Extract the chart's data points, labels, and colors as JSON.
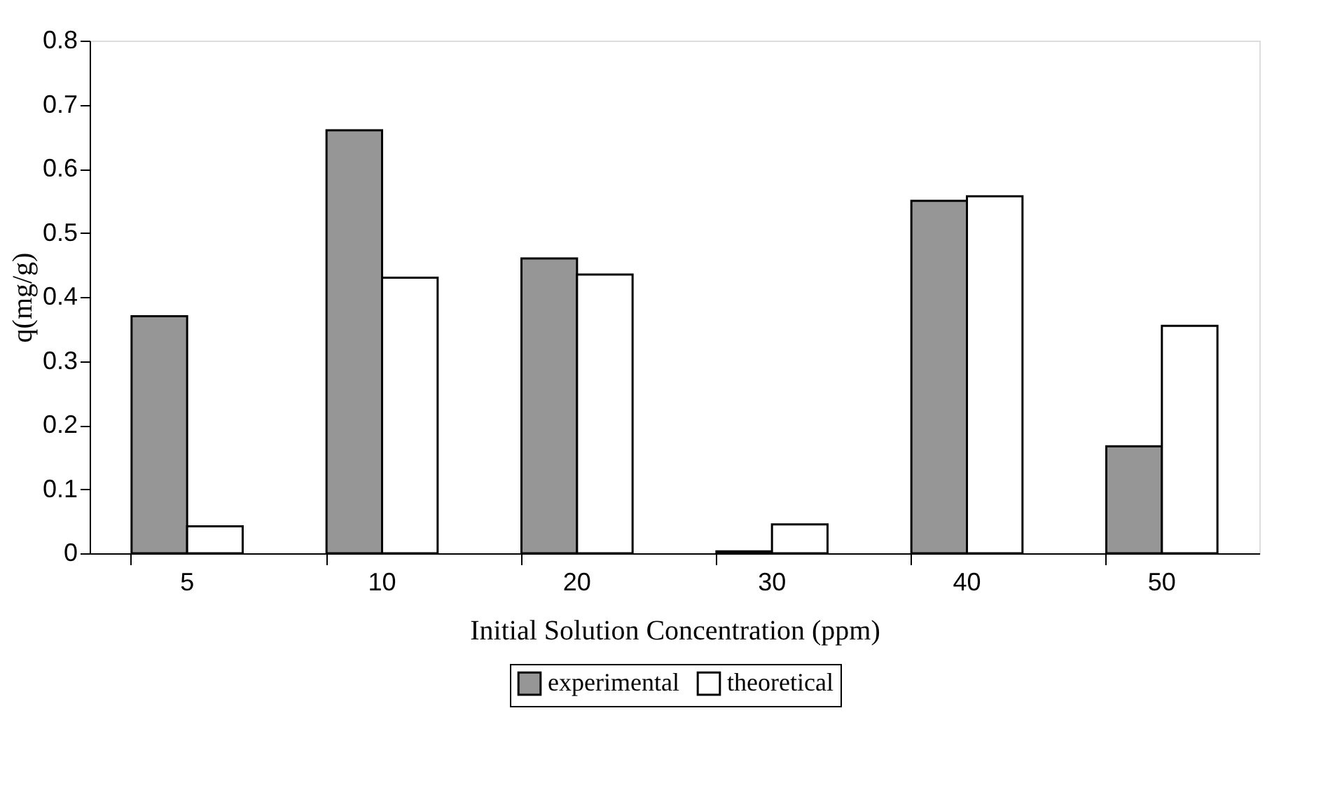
{
  "chart_data": {
    "type": "bar",
    "xlabel": "Initial Solution Concentration (ppm)",
    "ylabel": "q(mg/g)",
    "categories": [
      "5",
      "10",
      "20",
      "30",
      "40",
      "50"
    ],
    "series": [
      {
        "name": "experimental",
        "color": "#969696",
        "values": [
          0.37,
          0.66,
          0.46,
          0.003,
          0.55,
          0.167
        ]
      },
      {
        "name": "theoretical",
        "color": "#ffffff",
        "values": [
          0.042,
          0.43,
          0.435,
          0.045,
          0.557,
          0.355
        ]
      }
    ],
    "ylim": [
      0,
      0.8
    ],
    "yticks": [
      0,
      0.1,
      0.2,
      0.3,
      0.4,
      0.5,
      0.6,
      0.7,
      0.8
    ],
    "grid": false,
    "legend": "bottom"
  }
}
